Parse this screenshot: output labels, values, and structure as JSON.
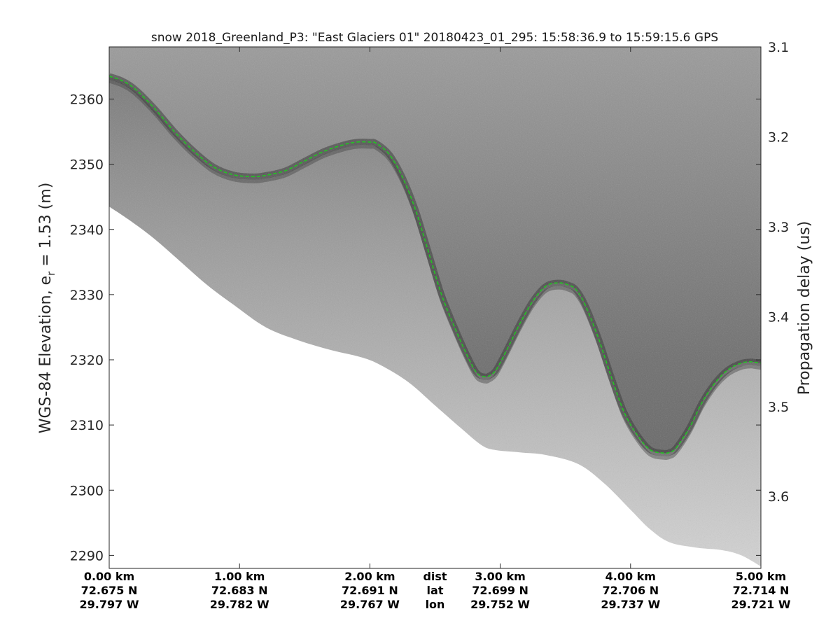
{
  "chart_data": {
    "type": "line",
    "title": "snow 2018_Greenland_P3: \"East Glaciers 01\"  20180423_01_295: 15:58:36.9 to 15:59:15.6 GPS",
    "ylabel": "WGS-84 Elevation, e",
    "ylabel_sub": "r",
    "ylabel_tail": " = 1.53 (m)",
    "ylabel_right": "Propagation delay (us)",
    "xlim": [
      0,
      5
    ],
    "ylim": [
      2288,
      2368
    ],
    "y_ticks": [
      "2290",
      "2300",
      "2310",
      "2320",
      "2330",
      "2340",
      "2350",
      "2360"
    ],
    "y_tick_values": [
      2290,
      2300,
      2310,
      2320,
      2330,
      2340,
      2350,
      2360
    ],
    "right_ticks": [
      "3.1",
      "3.2",
      "3.3",
      "3.4",
      "3.5",
      "3.6"
    ],
    "right_tick_values": [
      3.1,
      3.2,
      3.3,
      3.4,
      3.5,
      3.6
    ],
    "right_lim": [
      3.1,
      3.68
    ],
    "x_positions": [
      0,
      1,
      2,
      3,
      4,
      5
    ],
    "x_dist": [
      "0.00 km",
      "1.00 km",
      "2.00 km",
      "3.00 km",
      "4.00 km",
      "5.00 km"
    ],
    "x_lat": [
      "72.675 N",
      "72.683 N",
      "72.691 N",
      "72.699 N",
      "72.706 N",
      "72.714 N"
    ],
    "x_lon": [
      "29.797 W",
      "29.782 W",
      "29.767 W",
      "29.752 W",
      "29.737 W",
      "29.721 W"
    ],
    "row_labels": [
      "dist",
      "lat",
      "lon"
    ],
    "row_label_x": 2.5,
    "series": [
      {
        "color": "#22c422",
        "x": [
          0,
          0.1,
          0.2,
          0.35,
          0.5,
          0.65,
          0.8,
          0.95,
          1.1,
          1.2,
          1.35,
          1.5,
          1.65,
          1.8,
          1.9,
          2.0,
          2.05,
          2.15,
          2.25,
          2.35,
          2.45,
          2.55,
          2.65,
          2.75,
          2.82,
          2.88,
          2.92,
          2.97,
          3.05,
          3.15,
          3.25,
          3.35,
          3.45,
          3.52,
          3.58,
          3.65,
          3.75,
          3.85,
          3.95,
          4.05,
          4.15,
          4.25,
          4.3,
          4.35,
          4.45,
          4.55,
          4.65,
          4.75,
          4.85,
          4.92,
          4.96,
          5.0
        ],
        "y": [
          2363.5,
          2362.8,
          2361.5,
          2358.5,
          2355,
          2352,
          2349.6,
          2348.4,
          2348.1,
          2348.3,
          2349,
          2350.5,
          2352,
          2353,
          2353.4,
          2353.4,
          2353.2,
          2351.5,
          2348,
          2343,
          2336.5,
          2330,
          2325,
          2320.5,
          2318,
          2317.4,
          2317.6,
          2318.5,
          2321.5,
          2325.5,
          2329,
          2331.3,
          2331.8,
          2331.5,
          2330.8,
          2328.5,
          2323.5,
          2317.5,
          2312,
          2308.5,
          2306.2,
          2305.7,
          2305.8,
          2306.5,
          2309.5,
          2313.5,
          2316.5,
          2318.5,
          2319.5,
          2319.7,
          2319.6,
          2319.5
        ]
      }
    ],
    "bottom_x": [
      0,
      0.15,
      0.35,
      0.55,
      0.75,
      0.95,
      1.2,
      1.45,
      1.7,
      1.95,
      2.1,
      2.3,
      2.5,
      2.7,
      2.85,
      2.95,
      3.15,
      3.35,
      3.6,
      3.8,
      4.0,
      4.15,
      4.3,
      4.5,
      4.7,
      4.85,
      5.0
    ],
    "bottom_y": [
      2343.5,
      2341.5,
      2338.5,
      2335,
      2331.5,
      2328.5,
      2325,
      2323,
      2321.5,
      2320.3,
      2319,
      2316.5,
      2313,
      2309.5,
      2307,
      2306.2,
      2305.8,
      2305.4,
      2304,
      2301,
      2297,
      2294,
      2292,
      2291.2,
      2290.8,
      2290,
      2288.3
    ],
    "grid": false,
    "legend": "none"
  }
}
